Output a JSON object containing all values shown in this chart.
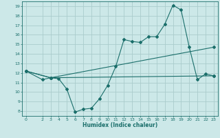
{
  "xlabel": "Humidex (Indice chaleur)",
  "bg_color": "#cce8e8",
  "grid_color": "#aacccc",
  "line_color": "#1a6e6a",
  "xlim": [
    -0.5,
    23.5
  ],
  "ylim": [
    7.5,
    19.5
  ],
  "xticks": [
    0,
    2,
    3,
    4,
    5,
    6,
    7,
    8,
    9,
    10,
    11,
    12,
    13,
    14,
    15,
    16,
    17,
    18,
    19,
    20,
    21,
    22,
    23
  ],
  "yticks": [
    8,
    9,
    10,
    11,
    12,
    13,
    14,
    15,
    16,
    17,
    18,
    19
  ],
  "line1_x": [
    0,
    2,
    3,
    4,
    5,
    6,
    7,
    8,
    9,
    10,
    11,
    12,
    13,
    14,
    15,
    16,
    17,
    18,
    19,
    20,
    21,
    22,
    23
  ],
  "line1_y": [
    12.2,
    11.3,
    11.5,
    11.4,
    10.3,
    7.9,
    8.2,
    8.3,
    9.3,
    10.7,
    12.7,
    15.5,
    15.3,
    15.2,
    15.8,
    15.8,
    17.1,
    19.1,
    18.6,
    14.7,
    11.3,
    11.9,
    11.7
  ],
  "line2_x": [
    0,
    3,
    23
  ],
  "line2_y": [
    12.2,
    11.5,
    11.7
  ],
  "line3_x": [
    0,
    3,
    23
  ],
  "line3_y": [
    12.2,
    11.5,
    14.7
  ]
}
